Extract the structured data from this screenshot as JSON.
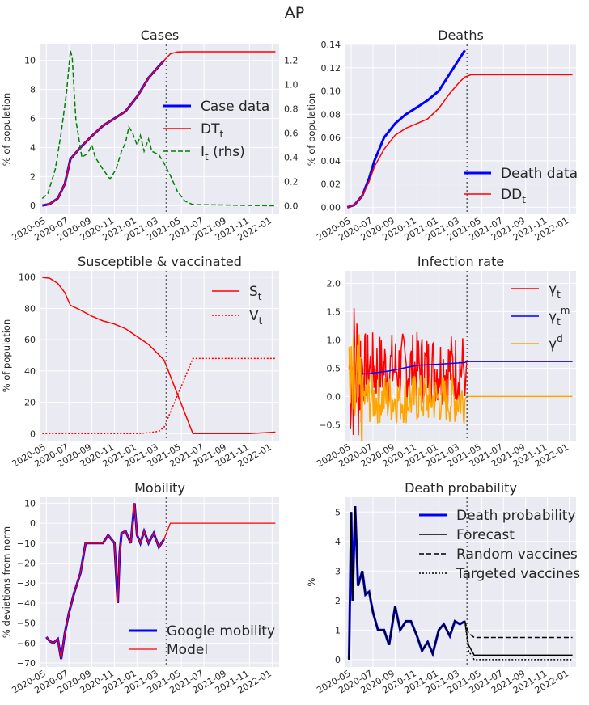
{
  "suptitle": "AP",
  "x_ticks": [
    "2020-05",
    "2020-07",
    "2020-09",
    "2020-11",
    "2021-01",
    "2021-03",
    "2021-05",
    "2021-07",
    "2021-09",
    "2021-11",
    "2022-01"
  ],
  "forecast_divider_date": "2021-03",
  "chart_data": [
    {
      "id": "cases",
      "type": "line",
      "title": "Cases",
      "ylabel": "% of population",
      "xlim": [
        "2020-04-15",
        "2022-01-20"
      ],
      "ylim": [
        -0.6,
        11.1
      ],
      "yticks": [
        0,
        2,
        4,
        6,
        8,
        10
      ],
      "ylim2": [
        -0.07,
        1.33
      ],
      "yticks2": [
        "0.0",
        "0.2",
        "0.4",
        "0.6",
        "0.8",
        "1.0",
        "1.2"
      ],
      "legend": "center-right",
      "series": [
        {
          "name": "Case data",
          "color": "#0000ff",
          "width": 3,
          "dash": "",
          "x": [
            "2020-04-20",
            "2020-05-10",
            "2020-06-01",
            "2020-06-20",
            "2020-07-05",
            "2020-08-01",
            "2020-09-01",
            "2020-10-01",
            "2020-11-01",
            "2020-12-01",
            "2021-01-01",
            "2021-02-01",
            "2021-03-15"
          ],
          "y": [
            0,
            0.1,
            0.5,
            1.5,
            3.2,
            4.0,
            4.8,
            5.5,
            6.0,
            6.5,
            7.5,
            8.8,
            10.0
          ]
        },
        {
          "name": "DT_t",
          "color": "#ff0000",
          "width": 1.5,
          "dash": "",
          "x": [
            "2020-04-20",
            "2020-05-10",
            "2020-06-01",
            "2020-06-20",
            "2020-07-05",
            "2020-08-01",
            "2020-09-01",
            "2020-10-01",
            "2020-11-01",
            "2020-12-01",
            "2021-01-01",
            "2021-02-01",
            "2021-03-15",
            "2021-04-01",
            "2021-04-20",
            "2021-05-15",
            "2021-06-15",
            "2022-01-10"
          ],
          "y": [
            0,
            0.1,
            0.5,
            1.5,
            3.2,
            4.0,
            4.8,
            5.5,
            6.0,
            6.5,
            7.5,
            8.8,
            10.0,
            10.45,
            10.58,
            10.6,
            10.6,
            10.6
          ]
        },
        {
          "name": "I_t (rhs)",
          "axis": "right",
          "color": "#008000",
          "width": 1.5,
          "dash": "6,3",
          "x": [
            "2020-04-20",
            "2020-05-05",
            "2020-05-25",
            "2020-06-10",
            "2020-06-25",
            "2020-07-05",
            "2020-07-10",
            "2020-07-15",
            "2020-07-20",
            "2020-07-28",
            "2020-08-05",
            "2020-08-20",
            "2020-09-01",
            "2020-09-10",
            "2020-10-01",
            "2020-10-20",
            "2020-11-05",
            "2020-11-20",
            "2020-12-01",
            "2020-12-10",
            "2020-12-20",
            "2021-01-01",
            "2021-01-10",
            "2021-01-20",
            "2021-02-01",
            "2021-02-10",
            "2021-03-01",
            "2021-03-15",
            "2021-04-01",
            "2021-04-20",
            "2021-05-10",
            "2021-06-01",
            "2022-01-10"
          ],
          "y": [
            0.06,
            0.1,
            0.3,
            0.6,
            0.95,
            1.28,
            1.22,
            0.95,
            0.7,
            0.55,
            0.4,
            0.43,
            0.5,
            0.4,
            0.3,
            0.22,
            0.3,
            0.45,
            0.52,
            0.65,
            0.6,
            0.5,
            0.58,
            0.45,
            0.55,
            0.45,
            0.42,
            0.35,
            0.25,
            0.12,
            0.04,
            0.01,
            0.0
          ]
        }
      ]
    },
    {
      "id": "deaths",
      "type": "line",
      "title": "Deaths",
      "ylabel": "% of population",
      "xlim": [
        "2020-04-15",
        "2022-01-20"
      ],
      "ylim": [
        -0.006,
        0.14
      ],
      "yticks": [
        "0.00",
        "0.02",
        "0.04",
        "0.06",
        "0.08",
        "0.10",
        "0.12",
        "0.14"
      ],
      "legend": "lower-right",
      "series": [
        {
          "name": "Death data",
          "color": "#0000ff",
          "width": 3,
          "dash": "",
          "x": [
            "2020-04-20",
            "2020-05-10",
            "2020-06-01",
            "2020-06-20",
            "2020-07-05",
            "2020-08-01",
            "2020-09-01",
            "2020-10-01",
            "2020-11-01",
            "2020-12-01",
            "2021-01-01",
            "2021-02-01",
            "2021-03-15"
          ],
          "y": [
            0,
            0.002,
            0.01,
            0.025,
            0.04,
            0.06,
            0.072,
            0.08,
            0.086,
            0.092,
            0.1,
            0.115,
            0.135
          ]
        },
        {
          "name": "DD_t",
          "color": "#ff0000",
          "width": 1.5,
          "dash": "",
          "x": [
            "2020-04-20",
            "2020-05-10",
            "2020-06-01",
            "2020-06-20",
            "2020-07-05",
            "2020-08-01",
            "2020-09-01",
            "2020-10-01",
            "2020-11-01",
            "2020-12-01",
            "2021-01-01",
            "2021-02-01",
            "2021-03-01",
            "2021-03-15",
            "2021-04-01",
            "2021-05-01",
            "2022-01-10"
          ],
          "y": [
            0,
            0.002,
            0.01,
            0.022,
            0.035,
            0.05,
            0.062,
            0.068,
            0.072,
            0.076,
            0.085,
            0.098,
            0.108,
            0.112,
            0.114,
            0.114,
            0.114
          ]
        }
      ]
    },
    {
      "id": "susceptible",
      "type": "line",
      "title": "Susceptible & vaccinated",
      "ylabel": "% of population",
      "xlim": [
        "2020-04-15",
        "2022-01-20"
      ],
      "ylim": [
        -4.5,
        104
      ],
      "yticks": [
        0,
        20,
        40,
        60,
        80,
        100
      ],
      "legend": "upper-right",
      "series": [
        {
          "name": "S_t",
          "color": "#ff0000",
          "width": 1.5,
          "dash": "",
          "x": [
            "2020-04-20",
            "2020-05-10",
            "2020-06-01",
            "2020-06-20",
            "2020-07-05",
            "2020-08-01",
            "2020-09-01",
            "2020-10-01",
            "2020-11-01",
            "2020-12-01",
            "2021-01-01",
            "2021-02-01",
            "2021-03-15",
            "2021-06-01",
            "2021-11-01",
            "2022-01-10"
          ],
          "y": [
            99.8,
            99.3,
            96,
            90,
            82,
            79,
            75,
            72,
            70,
            67,
            62,
            57,
            47,
            0,
            0,
            0.9
          ]
        },
        {
          "name": "V_t",
          "color": "#ff0000",
          "width": 1.5,
          "dash": "2,2",
          "x": [
            "2020-04-20",
            "2021-01-01",
            "2021-02-01",
            "2021-03-01",
            "2021-03-15",
            "2021-06-01",
            "2022-01-10"
          ],
          "y": [
            0,
            0,
            0.5,
            1.5,
            4,
            48,
            48
          ]
        }
      ]
    },
    {
      "id": "infection",
      "type": "line",
      "title": "Infection rate",
      "ylabel": "",
      "xlim": [
        "2020-04-15",
        "2022-01-20"
      ],
      "ylim": [
        -0.78,
        2.22
      ],
      "yticks": [
        "−0.5",
        "0.0",
        "0.5",
        "1.0",
        "1.5",
        "2.0"
      ],
      "yvals": [
        -0.5,
        0,
        0.5,
        1,
        1.5,
        2
      ],
      "legend": "upper-right",
      "series": [
        {
          "name": "γ_t",
          "color": "#ff0000",
          "width": 1.5,
          "dash": "",
          "x": [
            "2020-04-25",
            "2021-03-15"
          ],
          "y": [
            0.5,
            0.5
          ],
          "noise": "red"
        },
        {
          "name": "γ_t^m",
          "color": "#0000ff",
          "width": 1.5,
          "dash": "",
          "x": [
            "2020-04-25",
            "2020-06-15",
            "2020-08-15",
            "2020-11-01",
            "2021-01-01",
            "2021-03-15",
            "2021-03-20",
            "2022-01-10"
          ],
          "y": [
            0.4,
            0.4,
            0.45,
            0.55,
            0.57,
            0.6,
            0.62,
            0.62
          ]
        },
        {
          "name": "γ^d",
          "color": "#ffa500",
          "width": 1.5,
          "dash": "",
          "x": [
            "2020-04-25",
            "2021-03-15",
            "2021-03-20",
            "2022-01-10"
          ],
          "y": [
            0,
            0,
            0,
            0
          ],
          "noise": "orange"
        }
      ]
    },
    {
      "id": "mobility",
      "type": "line",
      "title": "Mobility",
      "ylabel": "% deviations from norm",
      "xlim": [
        "2020-04-15",
        "2022-01-20"
      ],
      "ylim": [
        -72,
        13
      ],
      "yticks": [
        "−70",
        "−60",
        "−50",
        "−40",
        "−30",
        "−20",
        "−10",
        "0",
        "10"
      ],
      "yvals": [
        -70,
        -60,
        -50,
        -40,
        -30,
        -20,
        -10,
        0,
        10
      ],
      "legend": "lower-right",
      "series": [
        {
          "name": "Google mobility",
          "color": "#0000ff",
          "width": 3,
          "dash": "",
          "x": [
            "2020-05-01",
            "2020-05-10",
            "2020-05-20",
            "2020-06-01",
            "2020-06-10",
            "2020-06-20",
            "2020-07-01",
            "2020-07-15",
            "2020-08-01",
            "2020-08-15",
            "2020-09-01",
            "2020-10-01",
            "2020-10-15",
            "2020-11-01",
            "2020-11-10",
            "2020-11-15",
            "2020-11-20",
            "2020-12-01",
            "2020-12-15",
            "2020-12-25",
            "2021-01-01",
            "2021-01-10",
            "2021-01-20",
            "2021-02-01",
            "2021-02-15",
            "2021-03-01",
            "2021-03-15"
          ],
          "y": [
            -57,
            -59,
            -60,
            -58,
            -68,
            -55,
            -45,
            -35,
            -25,
            -10,
            -10,
            -10,
            -6,
            -10,
            -40,
            -15,
            -5,
            -4,
            -10,
            10,
            -6,
            -10,
            -4,
            -10,
            -5,
            -12,
            -8
          ]
        },
        {
          "name": "Model",
          "color": "#ff0000",
          "width": 1.3,
          "dash": "",
          "x": [
            "2020-05-01",
            "2020-05-10",
            "2020-05-20",
            "2020-06-01",
            "2020-06-10",
            "2020-06-20",
            "2020-07-01",
            "2020-07-15",
            "2020-08-01",
            "2020-08-15",
            "2020-09-01",
            "2020-10-01",
            "2020-10-15",
            "2020-11-01",
            "2020-11-10",
            "2020-11-15",
            "2020-11-20",
            "2020-12-01",
            "2020-12-15",
            "2020-12-25",
            "2021-01-01",
            "2021-01-10",
            "2021-01-20",
            "2021-02-01",
            "2021-02-15",
            "2021-03-01",
            "2021-03-15",
            "2021-04-01",
            "2022-01-10"
          ],
          "y": [
            -57,
            -59,
            -60,
            -58,
            -68,
            -55,
            -45,
            -35,
            -25,
            -10,
            -10,
            -10,
            -6,
            -10,
            -40,
            -15,
            -5,
            -4,
            -10,
            10,
            -6,
            -10,
            -4,
            -10,
            -5,
            -12,
            -8,
            0,
            0
          ]
        }
      ]
    },
    {
      "id": "death_prob",
      "type": "line",
      "title": "Death probability",
      "ylabel": "%",
      "xlim": [
        "2020-04-15",
        "2022-01-20"
      ],
      "ylim": [
        -0.25,
        5.5
      ],
      "yticks": [
        0,
        1,
        2,
        3,
        4,
        5
      ],
      "legend": "upper-right",
      "series": [
        {
          "name": "Death probability",
          "color": "#0000ff",
          "width": 3,
          "dash": "",
          "x": [
            "2020-04-25",
            "2020-05-01",
            "2020-05-05",
            "2020-05-12",
            "2020-05-20",
            "2020-06-01",
            "2020-06-10",
            "2020-06-20",
            "2020-07-01",
            "2020-07-15",
            "2020-08-01",
            "2020-08-15",
            "2020-09-01",
            "2020-09-15",
            "2020-10-01",
            "2020-10-15",
            "2020-11-01",
            "2020-11-15",
            "2020-12-01",
            "2020-12-15",
            "2021-01-01",
            "2021-01-15",
            "2021-02-01",
            "2021-02-15",
            "2021-03-01",
            "2021-03-15"
          ],
          "y": [
            0,
            5,
            2,
            5.2,
            2.5,
            3,
            2.2,
            2.3,
            1.6,
            1,
            1,
            0.5,
            1.8,
            1,
            1.3,
            1.3,
            0.8,
            0.3,
            0.6,
            0.2,
            1,
            1.2,
            0.8,
            1.3,
            1.2,
            1.3
          ]
        },
        {
          "name": "Forecast",
          "color": "#000000",
          "width": 1.5,
          "dash": "",
          "x": [
            "2020-04-25",
            "2020-05-01",
            "2020-05-05",
            "2020-05-12",
            "2020-05-20",
            "2020-06-01",
            "2020-06-10",
            "2020-06-20",
            "2020-07-01",
            "2020-07-15",
            "2020-08-01",
            "2020-08-15",
            "2020-09-01",
            "2020-09-15",
            "2020-10-01",
            "2020-10-15",
            "2020-11-01",
            "2020-11-15",
            "2020-12-01",
            "2020-12-15",
            "2021-01-01",
            "2021-01-15",
            "2021-02-01",
            "2021-02-15",
            "2021-03-01",
            "2021-03-15",
            "2021-03-25",
            "2021-04-10",
            "2022-01-10"
          ],
          "y": [
            0,
            5,
            2,
            5.2,
            2.5,
            3,
            2.2,
            2.3,
            1.6,
            1,
            1,
            0.5,
            1.8,
            1,
            1.3,
            1.3,
            0.8,
            0.3,
            0.6,
            0.2,
            1,
            1.2,
            0.8,
            1.3,
            1.2,
            1.3,
            0.5,
            0.15,
            0.15
          ]
        },
        {
          "name": "Random vaccines",
          "color": "#000000",
          "width": 1.5,
          "dash": "6,3",
          "x": [
            "2021-03-15",
            "2021-03-25",
            "2021-04-10",
            "2022-01-10"
          ],
          "y": [
            1.3,
            0.9,
            0.75,
            0.75
          ]
        },
        {
          "name": "Targeted vaccines",
          "color": "#000000",
          "width": 1.5,
          "dash": "2,2",
          "x": [
            "2021-03-15",
            "2021-03-25",
            "2021-04-10",
            "2022-01-10"
          ],
          "y": [
            1.3,
            0.3,
            0.0,
            0.0
          ]
        }
      ]
    }
  ]
}
